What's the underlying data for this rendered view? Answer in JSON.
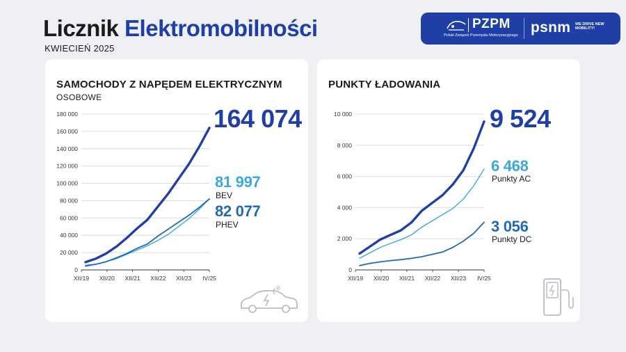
{
  "header": {
    "title_part1": "Licznik",
    "title_part2": "Elektromobilności",
    "subtitle": "KWIECIEŃ 2025"
  },
  "logos": {
    "pzpm_name": "PZPM",
    "pzpm_subtitle": "Polski Związek Przemysłu Motoryzacyjnego",
    "psnm_name": "psnm",
    "psnm_tagline": "WE DRIVE NEW MOBILITY!"
  },
  "cards": {
    "cars": {
      "title": "SAMOCHODY Z NAPĘDEM ELEKTRYCZNYM",
      "subtitle": "OSOBOWE",
      "total": "164 074",
      "bev_value": "81 997",
      "bev_label": "BEV",
      "phev_value": "82 077",
      "phev_label": "PHEV"
    },
    "charging": {
      "title": "PUNKTY ŁADOWANIA",
      "total": "9 524",
      "ac_value": "6 468",
      "ac_label": "Punkty AC",
      "dc_value": "3 056",
      "dc_label": "Punkty DC"
    }
  },
  "colors": {
    "total": "#1f3fa6",
    "bev": "#3aa7df",
    "phev": "#1e6ab8",
    "ac": "#3aa7df",
    "dc": "#1e6ab8",
    "grid": "#d9dbe0"
  },
  "chart_data": [
    {
      "type": "line",
      "x_tick_labels": [
        "XII/19",
        "XII/20",
        "XII/21",
        "XII/22",
        "XII/23",
        "IV/25"
      ],
      "y_tick_labels": [
        "0",
        "20 000",
        "40 000",
        "60 000",
        "80 000",
        "100 000",
        "120 000",
        "140 000",
        "160 000",
        "180 000"
      ],
      "ylim": [
        0,
        180000
      ],
      "grid": true,
      "series": [
        {
          "key": "total",
          "values": [
            9000,
            13000,
            19000,
            27000,
            37000,
            48000,
            58000,
            73000,
            88000,
            105000,
            122000,
            142000,
            164074
          ]
        },
        {
          "key": "bev",
          "values": [
            4000,
            6500,
            9500,
            13000,
            18000,
            23000,
            28000,
            34000,
            41000,
            50000,
            59000,
            70000,
            81997
          ]
        },
        {
          "key": "phev",
          "values": [
            5000,
            6500,
            9500,
            14000,
            19000,
            25000,
            30000,
            39000,
            47000,
            55000,
            63000,
            72000,
            82077
          ]
        }
      ]
    },
    {
      "type": "line",
      "x_tick_labels": [
        "XII/19",
        "XII/20",
        "XII/21",
        "XII/22",
        "XII/23",
        "IV/25"
      ],
      "y_tick_labels": [
        "0",
        "2 000",
        "4 000",
        "6 000",
        "8 000",
        "10 000"
      ],
      "ylim": [
        0,
        10000
      ],
      "grid": true,
      "series": [
        {
          "key": "total",
          "values": [
            1050,
            1500,
            1950,
            2250,
            2550,
            3050,
            3800,
            4300,
            4800,
            5500,
            6400,
            7800,
            9524
          ]
        },
        {
          "key": "ac",
          "values": [
            750,
            1100,
            1450,
            1700,
            1950,
            2250,
            2750,
            3150,
            3550,
            3950,
            4550,
            5400,
            6468
          ]
        },
        {
          "key": "dc",
          "values": [
            280,
            420,
            520,
            600,
            660,
            740,
            850,
            1000,
            1150,
            1450,
            1850,
            2350,
            3056
          ]
        }
      ]
    }
  ]
}
